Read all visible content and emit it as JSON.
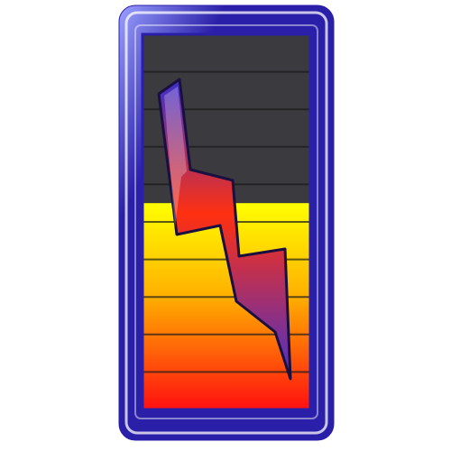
{
  "icon": {
    "name": "power-level-lightning-icon",
    "frame_color": "#2a1fa8",
    "frame_highlight": "#9aa0ff",
    "frame_shine": "#ffffff",
    "level": 0.55,
    "level_segments": 10,
    "empty_color": "#3b3a3f",
    "empty_line_color": "#1a1a1a",
    "gradient_top": "#ffff00",
    "gradient_mid": "#ffb000",
    "gradient_bottom": "#ff1010",
    "bolt_top": "#3a2fd0",
    "bolt_mid": "#ff3010",
    "bolt_bottom": "#4a30c8",
    "bolt_outline": "#1a1040"
  }
}
